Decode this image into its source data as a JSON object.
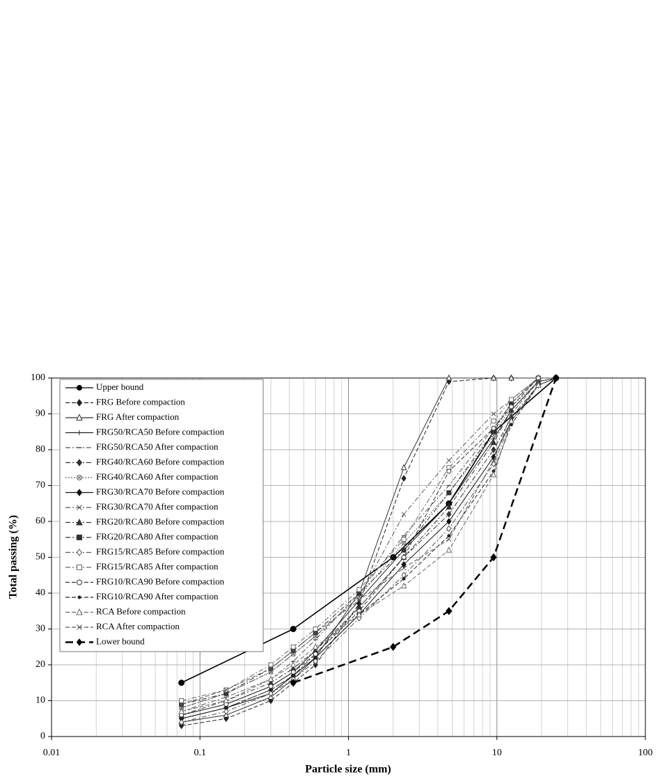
{
  "chart_data": {
    "type": "line",
    "x_label": "Particle size (mm)",
    "y_label": "Total passing (%)",
    "xlog": true,
    "xlim": [
      0.01,
      100
    ],
    "xticks": [
      0.01,
      0.1,
      1,
      10,
      100
    ],
    "ylim": [
      0,
      100
    ],
    "yticks": [
      0,
      10,
      20,
      30,
      40,
      50,
      60,
      70,
      80,
      90,
      100
    ],
    "grid": true,
    "minor_grid": true,
    "legend": "top-left",
    "series": [
      {
        "name": "Upper bound",
        "color": "#000000",
        "marker": "circle",
        "filled": true,
        "style": "solid",
        "x": [
          0.075,
          0.425,
          2,
          4.75,
          9.5,
          25
        ],
        "values": [
          15,
          30,
          50,
          65,
          85,
          100
        ]
      },
      {
        "name": "FRG Before compaction",
        "color": "#222222",
        "marker": "diamond",
        "filled": true,
        "style": "dashed",
        "x": [
          0.075,
          0.15,
          0.3,
          0.425,
          0.6,
          1.18,
          2.36,
          4.75,
          9.5,
          12.5,
          19,
          25
        ],
        "values": [
          3,
          5,
          10,
          15,
          20,
          37,
          72,
          99,
          100,
          100,
          100,
          100
        ]
      },
      {
        "name": "FRG After compaction",
        "color": "#333333",
        "marker": "triangle",
        "filled": false,
        "style": "solid",
        "x": [
          0.075,
          0.15,
          0.3,
          0.425,
          0.6,
          1.18,
          2.36,
          4.75,
          9.5,
          12.5,
          19,
          25
        ],
        "values": [
          4,
          6,
          11,
          16,
          22,
          40,
          75,
          100,
          100,
          100,
          100,
          100
        ]
      },
      {
        "name": "FRG50/RCA50 Before compaction",
        "color": "#222222",
        "marker": "plus",
        "filled": true,
        "style": "solid",
        "x": [
          0.075,
          0.15,
          0.3,
          0.425,
          0.6,
          1.18,
          2.36,
          4.75,
          9.5,
          12.5,
          19,
          25
        ],
        "values": [
          6,
          9,
          14,
          18,
          24,
          38,
          52,
          65,
          83,
          91,
          99,
          100
        ]
      },
      {
        "name": "FRG50/RCA50 After compaction",
        "color": "#555555",
        "marker": "dash",
        "filled": true,
        "style": "dashdot",
        "x": [
          0.075,
          0.15,
          0.3,
          0.425,
          0.6,
          1.18,
          2.36,
          4.75,
          9.5,
          12.5,
          19,
          25
        ],
        "values": [
          7,
          11,
          16,
          21,
          27,
          40,
          56,
          70,
          86,
          93,
          100,
          100
        ]
      },
      {
        "name": "FRG40/RCA60 Before compaction",
        "color": "#333333",
        "marker": "diamond",
        "filled": true,
        "style": "dashdot",
        "x": [
          0.075,
          0.15,
          0.3,
          0.425,
          0.6,
          1.18,
          2.36,
          4.75,
          9.5,
          12.5,
          19,
          25
        ],
        "values": [
          5,
          8,
          13,
          17,
          23,
          36,
          50,
          62,
          80,
          89,
          98,
          100
        ]
      },
      {
        "name": "FRG40/RCA60 After compaction",
        "color": "#666666",
        "marker": "circlex",
        "filled": false,
        "style": "dotted",
        "x": [
          0.075,
          0.15,
          0.3,
          0.425,
          0.6,
          1.18,
          2.36,
          4.75,
          9.5,
          12.5,
          19,
          25
        ],
        "values": [
          8,
          12,
          18,
          23,
          28,
          39,
          54,
          68,
          84,
          92,
          99,
          100
        ]
      },
      {
        "name": "FRG30/RCA70 Before compaction",
        "color": "#111111",
        "marker": "diamond",
        "filled": true,
        "style": "solid",
        "x": [
          0.075,
          0.15,
          0.3,
          0.425,
          0.6,
          1.18,
          2.36,
          4.75,
          9.5,
          12.5,
          19,
          25
        ],
        "values": [
          5,
          8,
          12,
          17,
          22,
          34,
          48,
          60,
          78,
          88,
          98,
          100
        ]
      },
      {
        "name": "FRG30/RCA70 After compaction",
        "color": "#555555",
        "marker": "x",
        "filled": true,
        "style": "dashdot",
        "x": [
          0.075,
          0.15,
          0.3,
          0.425,
          0.6,
          1.18,
          2.36,
          4.75,
          9.5,
          12.5,
          19,
          25
        ],
        "values": [
          8,
          12,
          18,
          23,
          28,
          39,
          62,
          77,
          90,
          94,
          100,
          100
        ]
      },
      {
        "name": "FRG20/RCA80 Before compaction",
        "color": "#333333",
        "marker": "triangle",
        "filled": true,
        "style": "dashdot",
        "x": [
          0.075,
          0.15,
          0.3,
          0.425,
          0.6,
          1.18,
          2.36,
          4.75,
          9.5,
          12.5,
          19,
          25
        ],
        "values": [
          6,
          10,
          15,
          19,
          24,
          36,
          50,
          64,
          82,
          91,
          99,
          100
        ]
      },
      {
        "name": "FRG20/RCA80 After compaction",
        "color": "#333333",
        "marker": "square",
        "filled": true,
        "style": "dashdot",
        "x": [
          0.075,
          0.15,
          0.3,
          0.425,
          0.6,
          1.18,
          2.36,
          4.75,
          9.5,
          12.5,
          19,
          25
        ],
        "values": [
          9,
          12,
          19,
          24,
          29,
          40,
          52,
          68,
          85,
          93,
          100,
          100
        ]
      },
      {
        "name": "FRG15/RCA85 Before compaction",
        "color": "#555555",
        "marker": "diamond",
        "filled": false,
        "style": "dashdot",
        "x": [
          0.075,
          0.15,
          0.3,
          0.425,
          0.6,
          1.18,
          2.36,
          4.75,
          9.5,
          12.5,
          19,
          25
        ],
        "values": [
          4,
          7,
          12,
          16,
          21,
          33,
          45,
          58,
          76,
          88,
          98,
          100
        ]
      },
      {
        "name": "FRG15/RCA85 After compaction",
        "color": "#666666",
        "marker": "square",
        "filled": false,
        "style": "dashdot",
        "x": [
          0.075,
          0.15,
          0.3,
          0.425,
          0.6,
          1.18,
          2.36,
          4.75,
          9.5,
          12.5,
          19,
          25
        ],
        "values": [
          10,
          13,
          20,
          25,
          30,
          41,
          55,
          75,
          88,
          94,
          100,
          100
        ]
      },
      {
        "name": "FRG10/RCA90 Before compaction",
        "color": "#333333",
        "marker": "circle",
        "filled": false,
        "style": "dashed",
        "x": [
          0.075,
          0.15,
          0.3,
          0.425,
          0.6,
          1.18,
          2.36,
          4.75,
          9.5,
          12.5,
          19,
          25
        ],
        "values": [
          6,
          9,
          14,
          18,
          23,
          35,
          50,
          74,
          86,
          92,
          100,
          100
        ]
      },
      {
        "name": "FRG10/RCA90 After compaction",
        "color": "#222222",
        "marker": "dot",
        "filled": true,
        "style": "dashed",
        "x": [
          0.075,
          0.15,
          0.3,
          0.425,
          0.6,
          1.18,
          2.36,
          4.75,
          9.5,
          12.5,
          19,
          25
        ],
        "values": [
          5,
          8,
          13,
          17,
          22,
          34,
          44,
          56,
          74,
          87,
          98,
          100
        ]
      },
      {
        "name": "RCA Before compaction",
        "color": "#666666",
        "marker": "triangle",
        "filled": false,
        "style": "dashed",
        "x": [
          0.075,
          0.15,
          0.3,
          0.425,
          0.6,
          1.18,
          2.36,
          4.75,
          9.5,
          12.5,
          19,
          25
        ],
        "values": [
          7,
          10,
          16,
          20,
          25,
          34,
          42,
          52,
          73,
          88,
          98,
          100
        ]
      },
      {
        "name": "RCA After compaction",
        "color": "#555555",
        "marker": "x",
        "filled": true,
        "style": "dashed",
        "x": [
          0.075,
          0.15,
          0.3,
          0.425,
          0.6,
          1.18,
          2.36,
          4.75,
          9.5,
          12.5,
          19,
          25
        ],
        "values": [
          9,
          13,
          19,
          24,
          29,
          38,
          47,
          55,
          77,
          90,
          99,
          100
        ]
      },
      {
        "name": "Lower bound",
        "color": "#000000",
        "marker": "diamond",
        "filled": true,
        "style": "longdash",
        "x": [
          0.425,
          2,
          4.75,
          9.5,
          25
        ],
        "values": [
          15,
          25,
          35,
          50,
          100
        ]
      }
    ]
  }
}
